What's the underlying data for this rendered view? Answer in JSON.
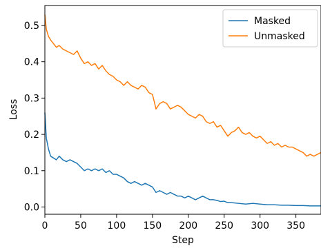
{
  "chart_data": {
    "type": "line",
    "title": "",
    "xlabel": "Step",
    "ylabel": "Loss",
    "xlim": [
      0,
      385
    ],
    "ylim": [
      -0.02,
      0.555
    ],
    "xticks": [
      "0",
      "50",
      "100",
      "150",
      "200",
      "250",
      "300",
      "350"
    ],
    "yticks": [
      "0.0",
      "0.1",
      "0.2",
      "0.3",
      "0.4",
      "0.5"
    ],
    "grid": false,
    "legend_position": "top-right",
    "series": [
      {
        "name": "Masked",
        "color": "#1f77b4",
        "x": [
          0,
          2,
          5,
          8,
          12,
          16,
          20,
          25,
          30,
          35,
          40,
          45,
          50,
          55,
          60,
          65,
          70,
          75,
          80,
          85,
          90,
          95,
          100,
          105,
          110,
          115,
          120,
          125,
          130,
          135,
          140,
          145,
          150,
          155,
          160,
          165,
          170,
          175,
          180,
          185,
          190,
          195,
          200,
          205,
          210,
          215,
          220,
          225,
          230,
          235,
          240,
          245,
          250,
          255,
          260,
          270,
          280,
          290,
          300,
          310,
          320,
          330,
          340,
          350,
          360,
          370,
          380,
          385
        ],
        "y": [
          0.26,
          0.19,
          0.16,
          0.14,
          0.135,
          0.13,
          0.14,
          0.13,
          0.125,
          0.13,
          0.125,
          0.12,
          0.11,
          0.1,
          0.105,
          0.1,
          0.105,
          0.1,
          0.105,
          0.095,
          0.1,
          0.09,
          0.09,
          0.085,
          0.08,
          0.07,
          0.065,
          0.07,
          0.065,
          0.06,
          0.065,
          0.06,
          0.055,
          0.04,
          0.045,
          0.04,
          0.035,
          0.04,
          0.035,
          0.03,
          0.03,
          0.025,
          0.03,
          0.025,
          0.02,
          0.025,
          0.03,
          0.025,
          0.02,
          0.02,
          0.018,
          0.015,
          0.016,
          0.012,
          0.012,
          0.01,
          0.008,
          0.01,
          0.008,
          0.006,
          0.006,
          0.005,
          0.005,
          0.004,
          0.004,
          0.003,
          0.003,
          0.003
        ]
      },
      {
        "name": "Unmasked",
        "color": "#ff7f0e",
        "x": [
          0,
          2,
          5,
          8,
          12,
          16,
          20,
          25,
          30,
          35,
          40,
          45,
          50,
          55,
          60,
          65,
          70,
          75,
          80,
          85,
          90,
          95,
          100,
          105,
          110,
          115,
          120,
          125,
          130,
          135,
          140,
          145,
          150,
          155,
          160,
          165,
          170,
          175,
          180,
          185,
          190,
          195,
          200,
          205,
          210,
          215,
          220,
          225,
          230,
          235,
          240,
          245,
          250,
          255,
          260,
          265,
          270,
          275,
          280,
          285,
          290,
          295,
          300,
          305,
          310,
          315,
          320,
          325,
          330,
          335,
          340,
          345,
          350,
          355,
          360,
          365,
          370,
          375,
          380,
          385
        ],
        "y": [
          0.53,
          0.49,
          0.47,
          0.46,
          0.45,
          0.44,
          0.445,
          0.435,
          0.43,
          0.425,
          0.42,
          0.43,
          0.41,
          0.395,
          0.4,
          0.39,
          0.395,
          0.38,
          0.39,
          0.375,
          0.365,
          0.36,
          0.35,
          0.345,
          0.335,
          0.345,
          0.335,
          0.33,
          0.325,
          0.335,
          0.33,
          0.315,
          0.31,
          0.27,
          0.285,
          0.29,
          0.285,
          0.27,
          0.275,
          0.28,
          0.275,
          0.265,
          0.255,
          0.25,
          0.245,
          0.255,
          0.25,
          0.235,
          0.23,
          0.235,
          0.22,
          0.225,
          0.21,
          0.195,
          0.205,
          0.21,
          0.22,
          0.205,
          0.2,
          0.205,
          0.195,
          0.19,
          0.195,
          0.185,
          0.175,
          0.18,
          0.17,
          0.175,
          0.165,
          0.17,
          0.165,
          0.165,
          0.16,
          0.155,
          0.15,
          0.14,
          0.145,
          0.14,
          0.145,
          0.15
        ]
      }
    ]
  }
}
